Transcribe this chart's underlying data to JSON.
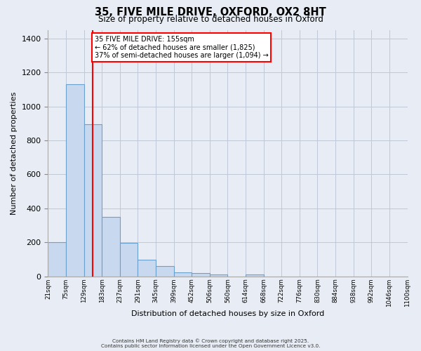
{
  "title": "35, FIVE MILE DRIVE, OXFORD, OX2 8HT",
  "subtitle": "Size of property relative to detached houses in Oxford",
  "xlabel": "Distribution of detached houses by size in Oxford",
  "ylabel": "Number of detached properties",
  "bar_color": "#c8d9ef",
  "bar_edge_color": "#6b9fcc",
  "fig_bg_color": "#e8edf5",
  "ax_bg_color": "#e8edf5",
  "grid_color": "#c0c8d8",
  "bin_labels": [
    "21sqm",
    "75sqm",
    "129sqm",
    "183sqm",
    "237sqm",
    "291sqm",
    "345sqm",
    "399sqm",
    "452sqm",
    "506sqm",
    "560sqm",
    "614sqm",
    "668sqm",
    "722sqm",
    "776sqm",
    "830sqm",
    "884sqm",
    "938sqm",
    "992sqm",
    "1046sqm",
    "1100sqm"
  ],
  "bar_values": [
    200,
    1130,
    895,
    350,
    197,
    100,
    60,
    25,
    20,
    10,
    0,
    12,
    0,
    0,
    0,
    0,
    0,
    0,
    0,
    0
  ],
  "n_bins": 20,
  "red_line_x": 2.5,
  "annotation_title": "35 FIVE MILE DRIVE: 155sqm",
  "annotation_line1": "← 62% of detached houses are smaller (1,825)",
  "annotation_line2": "37% of semi-detached houses are larger (1,094) →",
  "ylim": [
    0,
    1450
  ],
  "yticks": [
    0,
    200,
    400,
    600,
    800,
    1000,
    1200,
    1400
  ],
  "footer_line1": "Contains HM Land Registry data © Crown copyright and database right 2025.",
  "footer_line2": "Contains public sector information licensed under the Open Government Licence v3.0."
}
